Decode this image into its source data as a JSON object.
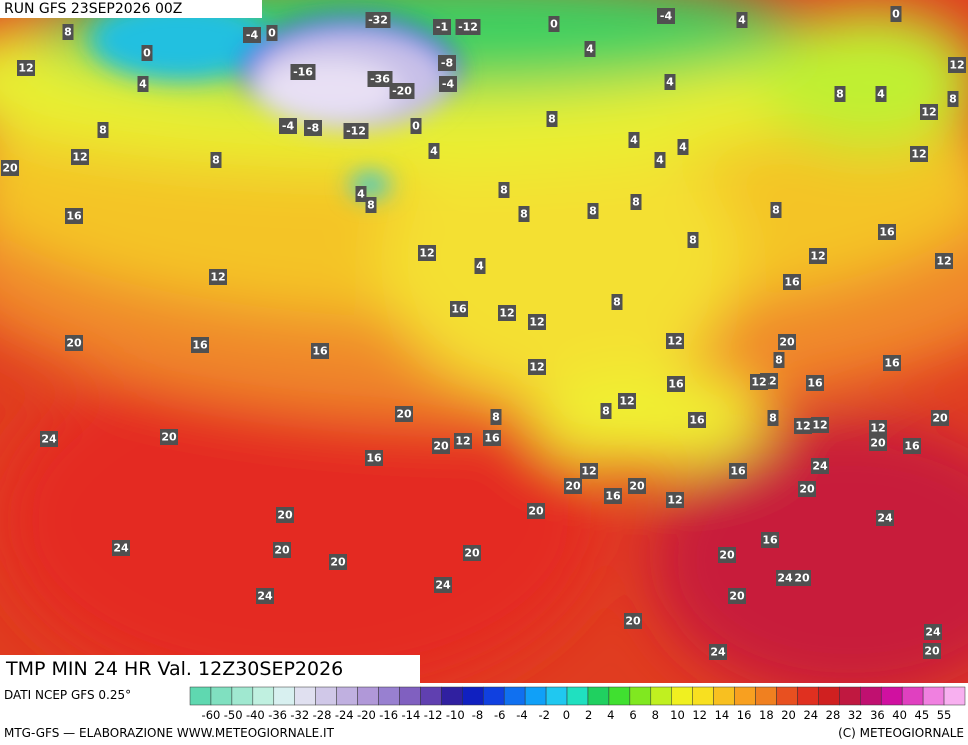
{
  "header": {
    "run": "RUN GFS 23SEP2026 00Z"
  },
  "footer": {
    "title": "TMP MIN 24 HR Val. 12Z30SEP2026",
    "source": "DATI NCEP GFS 0.25°",
    "credit_left": "MTG-GFS — ELABORAZIONE WWW.METEOGIORNALE.IT",
    "credit_right": "(C) METEOGIORNALE"
  },
  "legend": {
    "ticks": [
      -60,
      -50,
      -40,
      -36,
      -32,
      -28,
      -24,
      -20,
      -16,
      -14,
      -12,
      -10,
      -8,
      -6,
      -4,
      -2,
      0,
      2,
      4,
      6,
      8,
      10,
      12,
      14,
      16,
      18,
      20,
      24,
      28,
      32,
      36,
      40,
      45,
      55
    ],
    "colors": [
      "#5fd8b0",
      "#80e0c0",
      "#a0e8d0",
      "#c0f0e0",
      "#d8f0f0",
      "#e0e0f0",
      "#d0c8e8",
      "#c0b0e0",
      "#b098d8",
      "#9880d0",
      "#8060c0",
      "#6040b0",
      "#3020a0",
      "#1020c0",
      "#1040e0",
      "#1070f0",
      "#10a0f8",
      "#20c8f0",
      "#20e0c0",
      "#20d060",
      "#40e030",
      "#80e820",
      "#c0f020",
      "#f0f020",
      "#f8e020",
      "#f8c020",
      "#f8a020",
      "#f08020",
      "#e85020",
      "#e03020",
      "#d02020",
      "#c01840",
      "#c01070",
      "#d010a0",
      "#e040c0",
      "#f080e0",
      "#f8b0f0"
    ]
  },
  "map": {
    "labels": [
      8,
      0,
      12,
      4,
      8,
      12,
      8,
      20,
      16,
      12,
      16,
      20,
      16,
      24,
      20,
      24,
      20,
      20,
      24,
      20,
      16,
      20,
      20,
      12,
      16,
      8,
      16,
      12,
      12,
      12,
      12,
      4,
      8,
      8,
      8,
      4,
      0,
      -4,
      -8,
      -32,
      -1,
      -12,
      0,
      -4,
      4,
      0,
      4,
      4,
      4,
      4,
      4,
      8,
      8,
      8,
      8,
      12,
      16,
      12,
      8,
      16,
      12,
      20,
      16,
      20,
      12,
      16,
      20,
      24,
      24,
      20,
      16,
      24,
      20,
      20,
      20,
      24,
      20,
      24,
      20,
      24,
      20,
      16,
      20,
      12,
      20,
      16,
      16,
      20,
      8,
      16,
      12,
      16,
      12,
      8,
      8,
      4,
      12,
      12,
      8,
      12,
      -4,
      -8,
      -12,
      -20,
      -36,
      -4,
      0,
      4,
      8,
      12,
      12,
      8,
      12,
      12,
      -16
    ]
  }
}
